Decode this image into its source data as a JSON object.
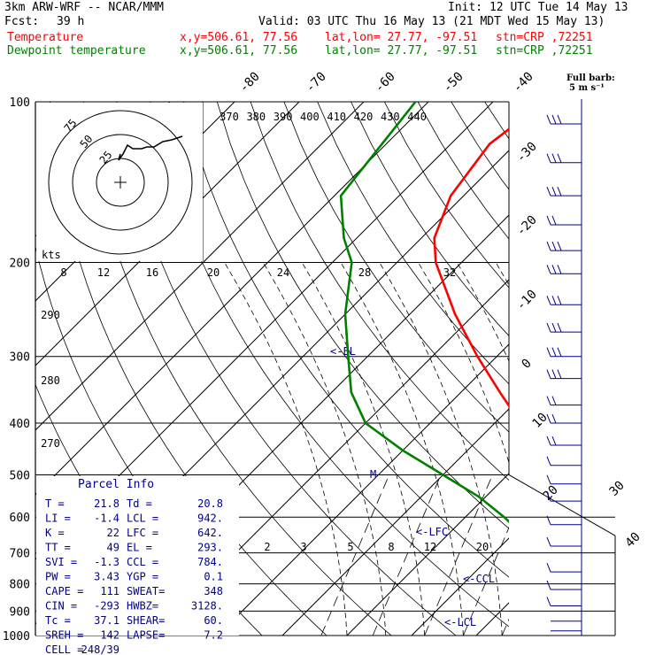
{
  "header": {
    "model": "3km ARW-WRF -- NCAR/MMM",
    "init": "Init: 12 UTC Tue 14 May 13",
    "fcst_label": "Fcst:",
    "fcst_value": "39 h",
    "valid": "Valid: 03 UTC Thu 16 May 13 (21 MDT Wed 15 May 13)",
    "temp_label": "Temperature",
    "dew_label": "Dewpoint temperature",
    "xy": "x,y=506.61, 77.56",
    "latlon": "lat,lon= 27.77, -97.51",
    "stn": "stn=CRP ,72251",
    "barb_note_1": "Full barb:",
    "barb_note_2": "5 m s⁻¹"
  },
  "colors": {
    "temperature": "#ff0000",
    "dewpoint": "#008000",
    "parcel_text": "#00008b",
    "barbs": "#00008b",
    "grid": "#000000"
  },
  "chart_data": {
    "type": "line",
    "title": "",
    "y_axis": "Pressure (hPa)",
    "pressure_ticks": [
      100,
      200,
      300,
      400,
      500,
      600,
      700,
      800,
      900,
      1000
    ],
    "y_scale": "log",
    "isotherm_labels": [
      "-80",
      "-70",
      "-60",
      "-50",
      "-40",
      "-30",
      "-20",
      "-10",
      "0",
      "10",
      "20",
      "30",
      "40"
    ],
    "theta_labels": [
      "370",
      "380",
      "390",
      "400",
      "410",
      "420",
      "430",
      "440"
    ],
    "theta_side_labels": [
      "290",
      "280",
      "270"
    ],
    "mixing_labels_upper": [
      "8",
      "12",
      "16",
      "20",
      "24",
      "28",
      "32"
    ],
    "mixing_labels_lower": [
      "2",
      "3",
      "5",
      "8",
      "12",
      "20"
    ],
    "series": [
      {
        "name": "Temperature",
        "points": [
          [
            100,
            -62
          ],
          [
            120,
            -64
          ],
          [
            150,
            -62
          ],
          [
            180,
            -58
          ],
          [
            200,
            -54
          ],
          [
            250,
            -43
          ],
          [
            300,
            -33
          ],
          [
            350,
            -24
          ],
          [
            400,
            -16
          ],
          [
            450,
            -10
          ],
          [
            500,
            -4
          ],
          [
            550,
            2
          ],
          [
            600,
            8
          ],
          [
            650,
            13
          ],
          [
            700,
            16
          ],
          [
            750,
            19
          ],
          [
            800,
            22
          ],
          [
            850,
            23
          ],
          [
            900,
            23
          ],
          [
            950,
            22
          ],
          [
            1000,
            22
          ]
        ]
      },
      {
        "name": "Dewpoint temperature",
        "points": [
          [
            100,
            -82
          ],
          [
            150,
            -79
          ],
          [
            180,
            -72
          ],
          [
            200,
            -67
          ],
          [
            250,
            -60
          ],
          [
            300,
            -53
          ],
          [
            350,
            -47
          ],
          [
            400,
            -40
          ],
          [
            450,
            -30
          ],
          [
            500,
            -20
          ],
          [
            550,
            -11
          ],
          [
            600,
            -4
          ],
          [
            650,
            2
          ],
          [
            700,
            8
          ],
          [
            750,
            13
          ],
          [
            800,
            17
          ],
          [
            850,
            19
          ],
          [
            900,
            20
          ],
          [
            950,
            21
          ],
          [
            1000,
            21
          ]
        ]
      }
    ],
    "annotations": [
      "<-EL",
      "<-LFC",
      "<-CCL",
      "<-LCL",
      "M"
    ],
    "hodograph": {
      "unit_label": "kts",
      "ring_labels": [
        "75",
        "50",
        "25"
      ],
      "trace": [
        [
          0,
          -2
        ],
        [
          -2,
          5
        ],
        [
          3,
          -2
        ],
        [
          8,
          -12
        ],
        [
          14,
          -8
        ],
        [
          24,
          -8
        ],
        [
          30,
          -10
        ],
        [
          38,
          -10
        ],
        [
          48,
          -16
        ],
        [
          58,
          -18
        ],
        [
          70,
          -22
        ]
      ]
    },
    "parcel_info": {
      "title": "Parcel Info",
      "rows": [
        [
          "T  =",
          "21.8",
          "Td =",
          "20.8"
        ],
        [
          "LI =",
          "-1.4",
          "LCL =",
          "942."
        ],
        [
          "K  =",
          "22",
          "LFC =",
          "642."
        ],
        [
          "TT =",
          "49",
          "EL =",
          "293."
        ],
        [
          "SVI =",
          "-1.3",
          "CCL =",
          "784."
        ],
        [
          "PW =",
          "3.43",
          "YGP =",
          "0.1"
        ],
        [
          "CAPE =",
          "111",
          "SWEAT=",
          "348"
        ],
        [
          "CIN =",
          "-293",
          "HWBZ=",
          "3128."
        ],
        [
          "Tc =",
          "37.1",
          "SHEAR=",
          "60."
        ],
        [
          "SREH =",
          "142",
          "LAPSE=",
          "7.2"
        ],
        [
          "CELL =",
          "248/39",
          "",
          ""
        ]
      ]
    },
    "wind_barbs": [
      {
        "p": 110,
        "n": 3
      },
      {
        "p": 130,
        "n": 3
      },
      {
        "p": 150,
        "n": 3
      },
      {
        "p": 170,
        "n": 2
      },
      {
        "p": 190,
        "n": 3
      },
      {
        "p": 210,
        "n": 3
      },
      {
        "p": 240,
        "n": 3
      },
      {
        "p": 270,
        "n": 3
      },
      {
        "p": 300,
        "n": 3
      },
      {
        "p": 330,
        "n": 3
      },
      {
        "p": 370,
        "n": 2
      },
      {
        "p": 400,
        "n": 2
      },
      {
        "p": 440,
        "n": 2
      },
      {
        "p": 480,
        "n": 1
      },
      {
        "p": 520,
        "n": 1
      },
      {
        "p": 560,
        "n": 1
      },
      {
        "p": 620,
        "n": 1
      },
      {
        "p": 680,
        "n": 1
      },
      {
        "p": 760,
        "n": 1
      },
      {
        "p": 820,
        "n": 1
      },
      {
        "p": 880,
        "n": 1
      },
      {
        "p": 940,
        "n": 0
      },
      {
        "p": 980,
        "n": 0
      }
    ]
  }
}
